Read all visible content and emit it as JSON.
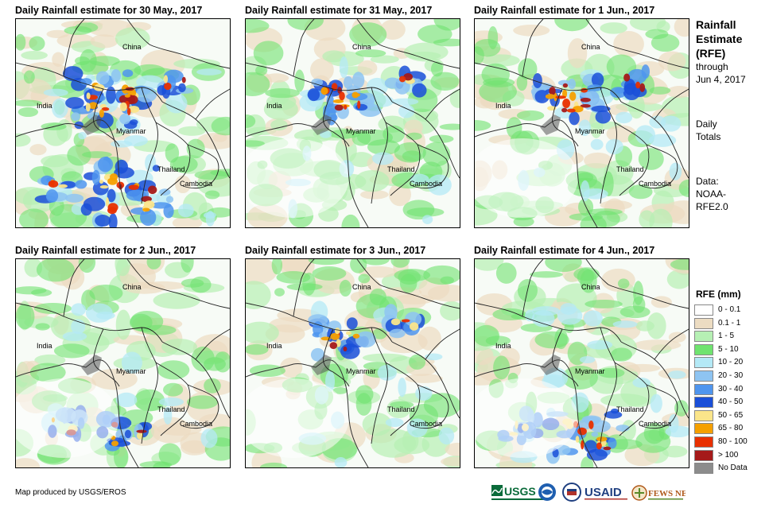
{
  "panels": [
    {
      "title": "Daily Rainfall estimate for 30 May., 2017",
      "intensity": 1.0,
      "storm": "north-south"
    },
    {
      "title": "Daily Rainfall estimate for 31 May., 2017",
      "intensity": 0.7,
      "storm": "north"
    },
    {
      "title": "Daily Rainfall estimate for 1 Jun., 2017",
      "intensity": 0.8,
      "storm": "north"
    },
    {
      "title": "Daily Rainfall estimate for 2 Jun., 2017",
      "intensity": 0.5,
      "storm": "south"
    },
    {
      "title": "Daily Rainfall estimate for 3 Jun., 2017",
      "intensity": 0.6,
      "storm": "north"
    },
    {
      "title": "Daily Rainfall estimate for 4 Jun., 2017",
      "intensity": 0.8,
      "storm": "south"
    }
  ],
  "countries": {
    "china": "China",
    "india": "India",
    "myanmar": "Myanmar",
    "thailand": "Thailand",
    "cambodia": "Cambodia"
  },
  "sidebar": {
    "title1": "Rainfall",
    "title2": "Estimate",
    "title3": "(RFE)",
    "through": "through",
    "date": "Jun 4, 2017",
    "daily": "Daily",
    "totals": "Totals",
    "data": "Data:",
    "noaa": "NOAA-",
    "rfe": "RFE2.0"
  },
  "legend": {
    "title": "RFE (mm)",
    "items": [
      {
        "label": "0 - 0.1",
        "color": "#ffffff"
      },
      {
        "label": "0.1 - 1",
        "color": "#ecdcc2"
      },
      {
        "label": "1 - 5",
        "color": "#b6f0b4"
      },
      {
        "label": "5 - 10",
        "color": "#6fe36f"
      },
      {
        "label": "10 - 20",
        "color": "#b4e9f6"
      },
      {
        "label": "20 - 30",
        "color": "#8ec4f2"
      },
      {
        "label": "30 - 40",
        "color": "#4f95ee"
      },
      {
        "label": "40 - 50",
        "color": "#1a4fd8"
      },
      {
        "label": "50 - 65",
        "color": "#fbe58a"
      },
      {
        "label": "65 - 80",
        "color": "#f5a000"
      },
      {
        "label": "80 - 100",
        "color": "#e83000"
      },
      {
        "label": "> 100",
        "color": "#a51a1a"
      },
      {
        "label": "No Data",
        "color": "#8c8c8c"
      }
    ]
  },
  "credit": "Map produced by USGS/EROS",
  "logos": {
    "usgs": "USGS",
    "usaid": "USAID",
    "fewsnet": "FEWS NET"
  }
}
